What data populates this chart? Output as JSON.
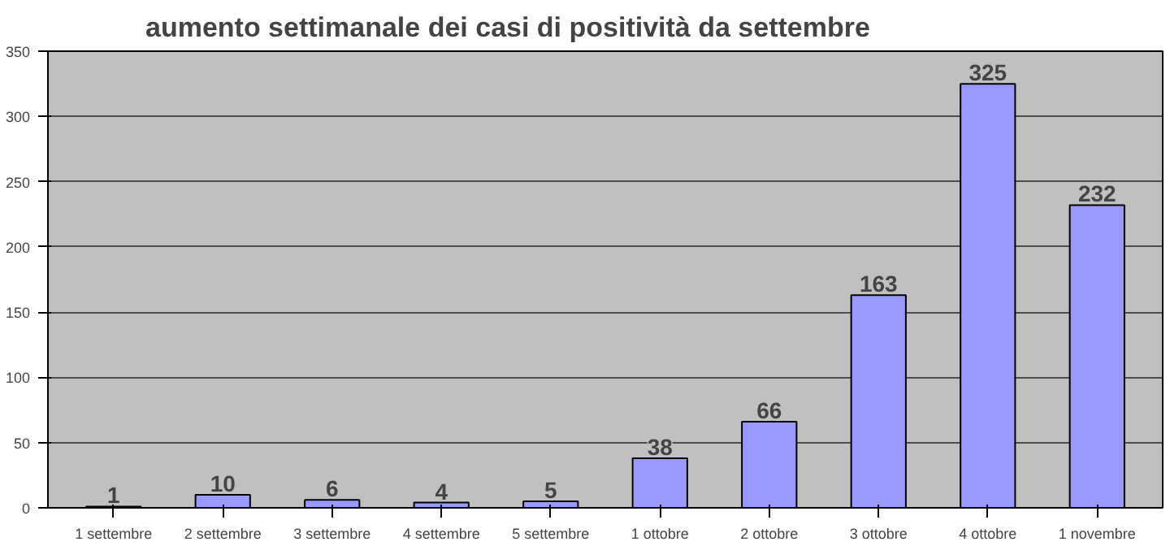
{
  "chart_data": {
    "type": "bar",
    "title": "aumento settimanale dei casi di positività da settembre",
    "categories": [
      "1 settembre",
      "2 settembre",
      "3 settembre",
      "4 settembre",
      "5 settembre",
      "1 ottobre",
      "2 ottobre",
      "3 ottobre",
      "4 ottobre",
      "1 novembre"
    ],
    "values": [
      1,
      10,
      6,
      4,
      5,
      38,
      66,
      163,
      325,
      232
    ],
    "color": "#9999ff",
    "ylim": [
      0,
      350
    ],
    "yticks": [
      0,
      50,
      100,
      150,
      200,
      250,
      300,
      350
    ],
    "grid": "y",
    "data_labels": true
  }
}
